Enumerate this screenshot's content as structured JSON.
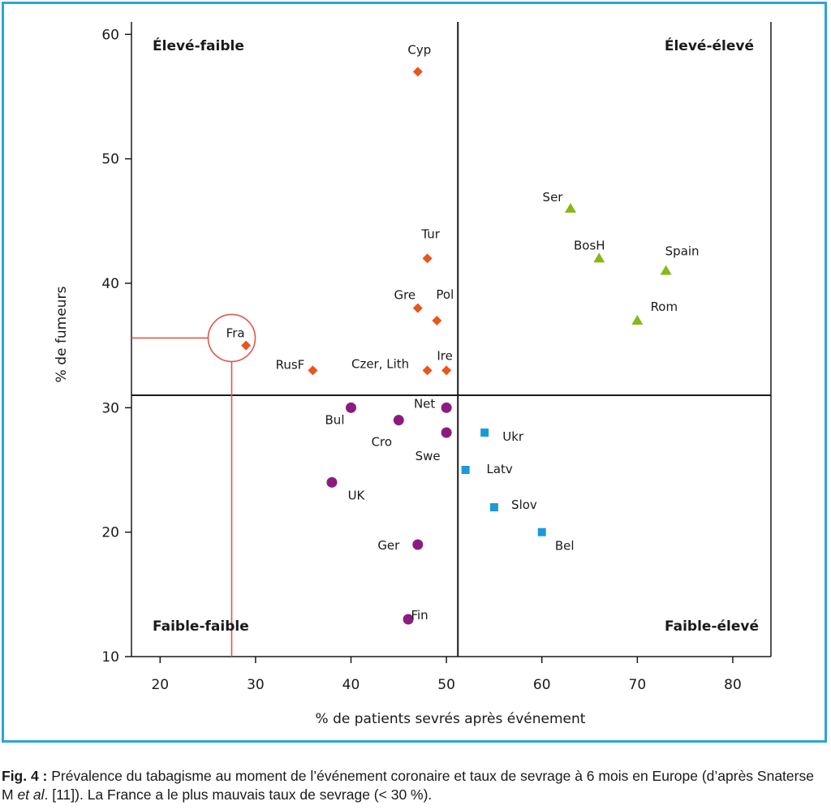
{
  "colors": {
    "frame": "#2aa5d8",
    "haut_faible": "#e8561a",
    "haut_haut": "#86b817",
    "bas_faible": "#8c1b7f",
    "bas_haut": "#1a9ad9",
    "highlight": "#e0574a"
  },
  "chart_data": {
    "type": "scatter",
    "xlabel": "% de patients sevrés après événement",
    "ylabel": "% de fumeurs",
    "xlim": [
      17,
      84
    ],
    "ylim": [
      10,
      61
    ],
    "xticks": [
      20,
      30,
      40,
      50,
      60,
      70,
      80
    ],
    "yticks": [
      10,
      20,
      30,
      40,
      50,
      60
    ],
    "dividers": {
      "x": 51.2,
      "y": 31
    },
    "quadrant_labels": {
      "top_left": "Élevé-faible",
      "top_right": "Élevé-élevé",
      "bottom_left": "Faible-faible",
      "bottom_right": "Faible-élevé"
    },
    "highlight": {
      "label": "Fra",
      "x": 29,
      "y": 35
    },
    "series": [
      {
        "marker": "diamond",
        "color": "#e8561a",
        "points": [
          {
            "label": "Cyp",
            "x": 47,
            "y": 57
          },
          {
            "label": "Tur",
            "x": 48,
            "y": 42
          },
          {
            "label": "Gre",
            "x": 47,
            "y": 38
          },
          {
            "label": "Pol",
            "x": 49,
            "y": 37
          },
          {
            "label": "Fra",
            "x": 29,
            "y": 35
          },
          {
            "label": "RusF",
            "x": 36,
            "y": 33
          },
          {
            "label": "Czer, Lith",
            "x": 48,
            "y": 33
          },
          {
            "label": "Ire",
            "x": 50,
            "y": 33
          }
        ]
      },
      {
        "marker": "triangle",
        "color": "#86b817",
        "points": [
          {
            "label": "Ser",
            "x": 63,
            "y": 46
          },
          {
            "label": "BosH",
            "x": 66,
            "y": 42
          },
          {
            "label": "Spain",
            "x": 73,
            "y": 41
          },
          {
            "label": "Rom",
            "x": 70,
            "y": 37
          }
        ]
      },
      {
        "marker": "circle",
        "color": "#8c1b7f",
        "points": [
          {
            "label": "Bul",
            "x": 40,
            "y": 30
          },
          {
            "label": "Net",
            "x": 50,
            "y": 30
          },
          {
            "label": "Cro",
            "x": 45,
            "y": 29
          },
          {
            "label": "Swe",
            "x": 50,
            "y": 28
          },
          {
            "label": "UK",
            "x": 38,
            "y": 24
          },
          {
            "label": "Ger",
            "x": 47,
            "y": 19
          },
          {
            "label": "Fin",
            "x": 46,
            "y": 13
          }
        ]
      },
      {
        "marker": "square",
        "color": "#1a9ad9",
        "points": [
          {
            "label": "Ukr",
            "x": 54,
            "y": 28
          },
          {
            "label": "Latv",
            "x": 52,
            "y": 25
          },
          {
            "label": "Slov",
            "x": 55,
            "y": 22
          },
          {
            "label": "Bel",
            "x": 60,
            "y": 20
          }
        ]
      }
    ]
  },
  "caption": {
    "fig_label": "Fig. 4 :",
    "text_1": " Prévalence du tabagisme au moment de l’événement coronaire et taux de sevrage à 6 mois en Europe (d’après Snaterse M ",
    "text_italic": "et al",
    "text_2": ". [11]). La France a le plus mauvais taux de sevrage (< 30 %)."
  }
}
